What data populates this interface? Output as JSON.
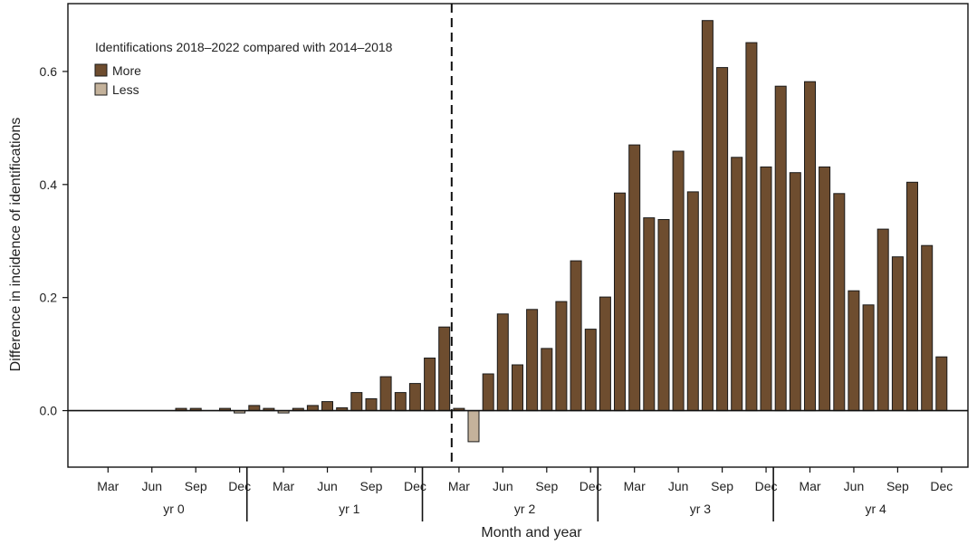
{
  "chart_data": {
    "type": "bar",
    "title": "",
    "xlabel": "Month and year",
    "ylabel": "Difference in incidence of identifications",
    "ylim": [
      -0.1,
      0.72
    ],
    "yticks": [
      "0.0",
      "0.2",
      "0.4",
      "0.6"
    ],
    "grid": false,
    "legend": {
      "title": "Identifications 2018–2022 compared with 2014–2018",
      "placement": "top-left",
      "entries": [
        {
          "label": "More",
          "color": "#6e4d2f"
        },
        {
          "label": "Less",
          "color": "#c4b29b"
        }
      ]
    },
    "month_ticks": [
      "Mar",
      "Jun",
      "Sep",
      "Dec"
    ],
    "year_groups": [
      "yr 0",
      "yr 1",
      "yr 2",
      "yr 3",
      "yr 4"
    ],
    "annotation": "dashed vertical line between Feb and Mar of yr 2",
    "months": [
      "Jan",
      "Feb",
      "Mar",
      "Apr",
      "May",
      "Jun",
      "Jul",
      "Aug",
      "Sep",
      "Oct",
      "Nov",
      "Dec"
    ],
    "values": [
      0,
      0,
      0,
      0,
      0,
      0,
      0,
      0.004,
      0.004,
      0,
      0.004,
      -0.004,
      0.009,
      0.004,
      -0.004,
      0.004,
      0.009,
      0.016,
      0.005,
      0.032,
      0.021,
      0.06,
      0.032,
      0.048,
      0.093,
      0.148,
      0.004,
      -0.055,
      0.065,
      0.171,
      0.081,
      0.179,
      0.11,
      0.193,
      0.265,
      0.144,
      0.201,
      0.385,
      0.47,
      0.341,
      0.338,
      0.459,
      0.387,
      0.69,
      0.607,
      0.448,
      0.651,
      0.431,
      0.574,
      0.421,
      0.582,
      0.431,
      0.384,
      0.212,
      0.187,
      0.321,
      0.272,
      0.404,
      0.292,
      0.095
    ],
    "colors": {
      "more": "#6e4d2f",
      "less": "#c4b29b",
      "outline": "#1a1a1a"
    }
  }
}
